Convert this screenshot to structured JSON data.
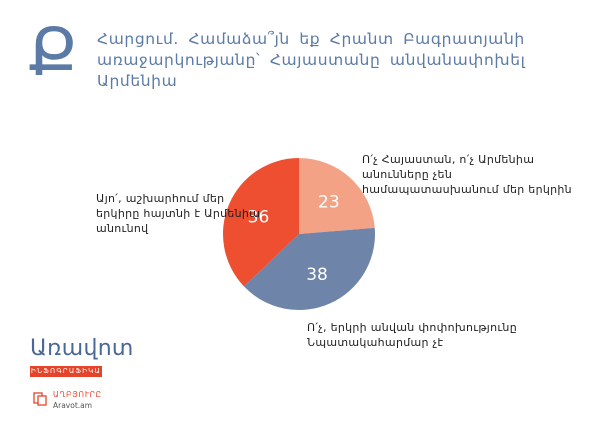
{
  "header": {
    "letter": "Ք",
    "question": "Հարցում. Համաձա՞յն եք Հրանտ Բագրատյանի առաջարկությանը՝ Հայաստանը անվանափոխել Արմենիա"
  },
  "chart_data": {
    "type": "pie",
    "slices": [
      {
        "value": 23,
        "label": "Ո՛չ Հայաստան, ո՛չ Արմենիա անունները չեն համապատասխանում մեր երկրին",
        "color": "#f4a285"
      },
      {
        "value": 38,
        "label": "Ո՛չ, երկրի անվան փոփոխությունը Նպատակահարմար չէ",
        "color": "#6f84a9"
      },
      {
        "value": 36,
        "label": "Այո՛, աշխարհում մեր երկիրը հայտնի է Արմենիա անունով",
        "color": "#ee4f31"
      }
    ],
    "start_angle_deg": 0,
    "direction": "clockwise",
    "legend": "labels beside slices",
    "value_label_color": "#ffffff"
  },
  "branding": {
    "logo": "Առավոտ",
    "tagline": "ԻՆՖՈԳՐԱՖԻԿԱ",
    "source_label": "ԱՂԲՅՈՒՐԸ",
    "source_site": "Aravot.am",
    "accent_color": "#e4442a"
  }
}
